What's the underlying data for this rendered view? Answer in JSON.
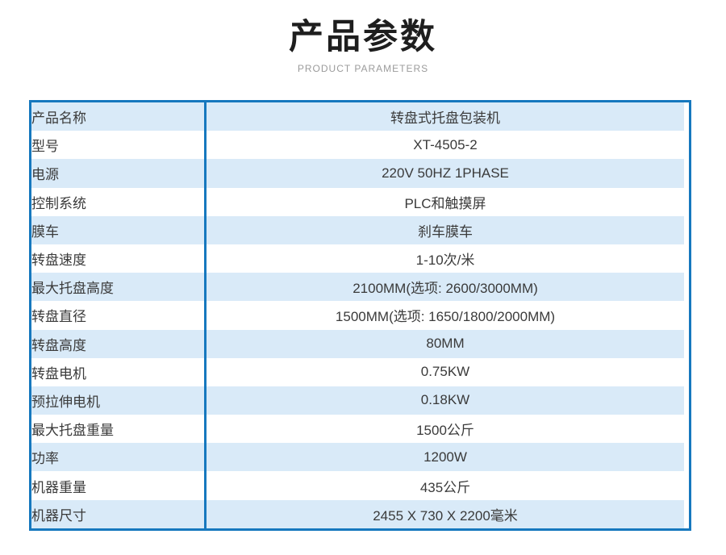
{
  "header": {
    "title": "产品参数",
    "subtitle": "PRODUCT PARAMETERS"
  },
  "colors": {
    "accent_blue": "#1678be",
    "row_light_blue": "#d9eaf8",
    "subtitle_gray": "#9b9b9b",
    "text_dark": "#3a3a3a"
  },
  "table": {
    "rows": [
      {
        "label": "产品名称",
        "value": "转盘式托盘包装机"
      },
      {
        "label": "型号",
        "value": "XT-4505-2"
      },
      {
        "label": "电源",
        "value": "220V 50HZ 1PHASE"
      },
      {
        "label": "控制系统",
        "value": "PLC和触摸屏"
      },
      {
        "label": "膜车",
        "value": "刹车膜车"
      },
      {
        "label": "转盘速度",
        "value": "1-10次/米"
      },
      {
        "label": "最大托盘高度",
        "value": "2100MM(选项: 2600/3000MM)"
      },
      {
        "label": "转盘直径",
        "value": "1500MM(选项: 1650/1800/2000MM)"
      },
      {
        "label": "转盘高度",
        "value": "80MM"
      },
      {
        "label": "转盘电机",
        "value": "0.75KW"
      },
      {
        "label": "预拉伸电机",
        "value": "0.18KW"
      },
      {
        "label": "最大托盘重量",
        "value": "1500公斤"
      },
      {
        "label": "功率",
        "value": "1200W"
      },
      {
        "label": "机器重量",
        "value": "435公斤"
      },
      {
        "label": "机器尺寸",
        "value": "2455 X 730 X 2200毫米"
      }
    ]
  }
}
